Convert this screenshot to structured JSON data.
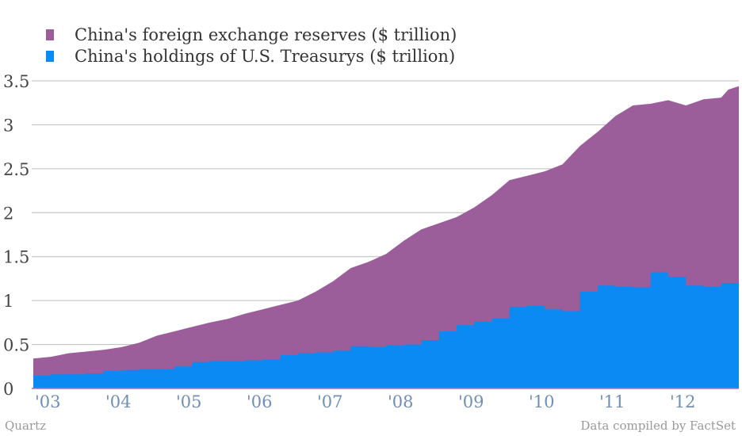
{
  "legend": [
    {
      "label": "China's foreign exchange reserves ($ trillion)",
      "color": "#9b5e9a"
    },
    {
      "label": "China's holdings of U.S. Treasurys ($ trillion)",
      "color": "#0a8af2"
    }
  ],
  "footer": {
    "left": "Quartz",
    "right": "Data compiled by FactSet"
  },
  "chart_data": {
    "type": "area",
    "ylim": [
      0,
      3.5
    ],
    "grid": true,
    "legend_position": "top-left",
    "yticks": [
      "0",
      "0.5",
      "1",
      "1.5",
      "2",
      "2.5",
      "3",
      "3.5"
    ],
    "xtick_labels": [
      "'03",
      "'04",
      "'05",
      "'06",
      "'07",
      "'08",
      "'09",
      "'10",
      "'11",
      "'12"
    ],
    "x_range": [
      2003.0,
      2013.0
    ],
    "series": [
      {
        "name": "China's foreign exchange reserves ($ trillion)",
        "color": "#9b5e9a",
        "style": "smooth",
        "points": [
          [
            2003.0,
            0.34
          ],
          [
            2003.25,
            0.36
          ],
          [
            2003.5,
            0.4
          ],
          [
            2003.75,
            0.42
          ],
          [
            2004.0,
            0.44
          ],
          [
            2004.25,
            0.47
          ],
          [
            2004.5,
            0.52
          ],
          [
            2004.75,
            0.6
          ],
          [
            2005.0,
            0.65
          ],
          [
            2005.25,
            0.7
          ],
          [
            2005.5,
            0.75
          ],
          [
            2005.75,
            0.79
          ],
          [
            2006.0,
            0.85
          ],
          [
            2006.25,
            0.9
          ],
          [
            2006.5,
            0.95
          ],
          [
            2006.75,
            1.0
          ],
          [
            2007.0,
            1.1
          ],
          [
            2007.25,
            1.22
          ],
          [
            2007.5,
            1.37
          ],
          [
            2007.75,
            1.44
          ],
          [
            2008.0,
            1.53
          ],
          [
            2008.25,
            1.68
          ],
          [
            2008.5,
            1.81
          ],
          [
            2008.75,
            1.88
          ],
          [
            2009.0,
            1.95
          ],
          [
            2009.25,
            2.06
          ],
          [
            2009.5,
            2.2
          ],
          [
            2009.75,
            2.37
          ],
          [
            2010.0,
            2.42
          ],
          [
            2010.25,
            2.47
          ],
          [
            2010.5,
            2.55
          ],
          [
            2010.75,
            2.76
          ],
          [
            2011.0,
            2.92
          ],
          [
            2011.25,
            3.1
          ],
          [
            2011.5,
            3.22
          ],
          [
            2011.75,
            3.24
          ],
          [
            2012.0,
            3.28
          ],
          [
            2012.25,
            3.22
          ],
          [
            2012.5,
            3.29
          ],
          [
            2012.75,
            3.31
          ],
          [
            2012.85,
            3.4
          ],
          [
            2013.0,
            3.44
          ]
        ]
      },
      {
        "name": "China's holdings of U.S. Treasurys ($ trillion)",
        "color": "#0a8af2",
        "style": "step",
        "points": [
          [
            2003.0,
            0.15
          ],
          [
            2003.25,
            0.16
          ],
          [
            2003.5,
            0.16
          ],
          [
            2003.75,
            0.17
          ],
          [
            2004.0,
            0.2
          ],
          [
            2004.25,
            0.21
          ],
          [
            2004.5,
            0.22
          ],
          [
            2004.75,
            0.22
          ],
          [
            2005.0,
            0.25
          ],
          [
            2005.25,
            0.3
          ],
          [
            2005.5,
            0.31
          ],
          [
            2005.75,
            0.31
          ],
          [
            2006.0,
            0.32
          ],
          [
            2006.25,
            0.33
          ],
          [
            2006.5,
            0.38
          ],
          [
            2006.75,
            0.4
          ],
          [
            2007.0,
            0.41
          ],
          [
            2007.25,
            0.43
          ],
          [
            2007.5,
            0.48
          ],
          [
            2007.75,
            0.47
          ],
          [
            2008.0,
            0.49
          ],
          [
            2008.25,
            0.5
          ],
          [
            2008.5,
            0.55
          ],
          [
            2008.75,
            0.65
          ],
          [
            2009.0,
            0.72
          ],
          [
            2009.25,
            0.76
          ],
          [
            2009.5,
            0.8
          ],
          [
            2009.75,
            0.93
          ],
          [
            2010.0,
            0.94
          ],
          [
            2010.25,
            0.9
          ],
          [
            2010.5,
            0.88
          ],
          [
            2010.75,
            1.1
          ],
          [
            2011.0,
            1.17
          ],
          [
            2011.25,
            1.16
          ],
          [
            2011.5,
            1.15
          ],
          [
            2011.75,
            1.32
          ],
          [
            2012.0,
            1.27
          ],
          [
            2012.25,
            1.17
          ],
          [
            2012.5,
            1.16
          ],
          [
            2012.75,
            1.2
          ],
          [
            2013.0,
            1.25
          ]
        ]
      }
    ]
  }
}
